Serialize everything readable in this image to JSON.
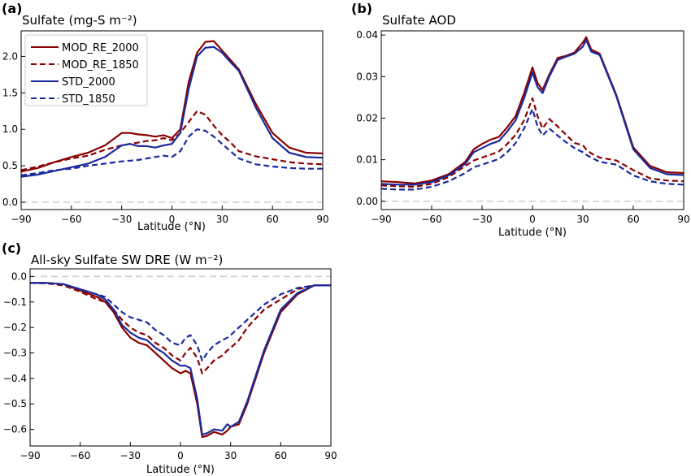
{
  "chart_data": [
    {
      "panel": "(a)",
      "type": "line",
      "title": "Sulfate (mg-S m⁻²)",
      "xlabel": "Latitude (°N)",
      "ylabel": "",
      "xlim": [
        -90,
        90
      ],
      "ylim": [
        -0.1,
        2.35
      ],
      "xticks": [
        -90,
        -60,
        -30,
        0,
        30,
        60,
        90
      ],
      "yticks": [
        0.0,
        0.5,
        1.0,
        1.5,
        2.0
      ],
      "ytick_labels": [
        "0.0",
        "0.5",
        "1.0",
        "1.5",
        "2.0"
      ],
      "zero_line": true,
      "legend": "top-left",
      "x": [
        -90,
        -80,
        -70,
        -60,
        -50,
        -40,
        -30,
        -25,
        -20,
        -15,
        -10,
        -5,
        0,
        5,
        10,
        15,
        20,
        25,
        30,
        35,
        40,
        50,
        60,
        70,
        80,
        90
      ],
      "series": [
        {
          "name": "MOD_RE_2000",
          "color": "#8b0000",
          "dash": false,
          "values": [
            0.42,
            0.47,
            0.55,
            0.62,
            0.68,
            0.78,
            0.95,
            0.95,
            0.93,
            0.92,
            0.9,
            0.92,
            0.88,
            1.0,
            1.65,
            2.05,
            2.2,
            2.21,
            2.08,
            1.95,
            1.82,
            1.35,
            0.95,
            0.75,
            0.68,
            0.67
          ]
        },
        {
          "name": "MOD_RE_1850",
          "color": "#8b0000",
          "dash": true,
          "values": [
            0.44,
            0.49,
            0.55,
            0.6,
            0.64,
            0.72,
            0.78,
            0.8,
            0.82,
            0.84,
            0.85,
            0.88,
            0.85,
            0.95,
            1.1,
            1.25,
            1.2,
            1.05,
            0.92,
            0.82,
            0.7,
            0.63,
            0.59,
            0.55,
            0.53,
            0.52
          ]
        },
        {
          "name": "STD_2000",
          "color": "#1a2a9c",
          "dash": false,
          "values": [
            0.35,
            0.38,
            0.43,
            0.48,
            0.53,
            0.62,
            0.78,
            0.8,
            0.77,
            0.77,
            0.75,
            0.78,
            0.8,
            0.95,
            1.55,
            2.0,
            2.12,
            2.13,
            2.05,
            1.92,
            1.8,
            1.3,
            0.88,
            0.68,
            0.62,
            0.61
          ]
        },
        {
          "name": "STD_1850",
          "color": "#1a2a9c",
          "dash": true,
          "values": [
            0.37,
            0.4,
            0.44,
            0.46,
            0.5,
            0.53,
            0.56,
            0.57,
            0.58,
            0.6,
            0.62,
            0.64,
            0.62,
            0.7,
            0.9,
            1.0,
            0.98,
            0.9,
            0.8,
            0.7,
            0.6,
            0.52,
            0.49,
            0.47,
            0.46,
            0.46
          ]
        }
      ]
    },
    {
      "panel": "(b)",
      "type": "line",
      "title": "Sulfate AOD",
      "xlabel": "Latitude (°N)",
      "ylabel": "",
      "xlim": [
        -90,
        90
      ],
      "ylim": [
        -0.002,
        0.041
      ],
      "xticks": [
        -90,
        -60,
        -30,
        0,
        30,
        60,
        90
      ],
      "yticks": [
        0.0,
        0.01,
        0.02,
        0.03,
        0.04
      ],
      "ytick_labels": [
        "0.00",
        "0.01",
        "0.02",
        "0.03",
        "0.04"
      ],
      "zero_line": true,
      "x": [
        -90,
        -80,
        -70,
        -60,
        -50,
        -40,
        -35,
        -30,
        -25,
        -20,
        -15,
        -10,
        -5,
        0,
        3,
        6,
        10,
        15,
        20,
        25,
        30,
        32,
        35,
        40,
        50,
        60,
        70,
        80,
        90
      ],
      "series": [
        {
          "name": "MOD_RE_2000",
          "color": "#8b0000",
          "dash": false,
          "values": [
            0.0048,
            0.0046,
            0.0043,
            0.005,
            0.0065,
            0.0095,
            0.0125,
            0.0138,
            0.0148,
            0.0155,
            0.0178,
            0.0205,
            0.026,
            0.0322,
            0.0285,
            0.0268,
            0.0305,
            0.0345,
            0.035,
            0.0358,
            0.0382,
            0.0395,
            0.0365,
            0.0355,
            0.0255,
            0.013,
            0.0085,
            0.007,
            0.0068
          ]
        },
        {
          "name": "MOD_RE_1850",
          "color": "#8b0000",
          "dash": true,
          "values": [
            0.0038,
            0.0036,
            0.0035,
            0.0042,
            0.0058,
            0.0085,
            0.0098,
            0.0105,
            0.0112,
            0.012,
            0.0138,
            0.016,
            0.0195,
            0.0248,
            0.0205,
            0.0175,
            0.0198,
            0.018,
            0.016,
            0.014,
            0.0135,
            0.0125,
            0.0115,
            0.0105,
            0.0098,
            0.0075,
            0.0055,
            0.005,
            0.0048
          ]
        },
        {
          "name": "STD_2000",
          "color": "#1a2a9c",
          "dash": false,
          "values": [
            0.0042,
            0.004,
            0.004,
            0.0046,
            0.0062,
            0.009,
            0.0118,
            0.0128,
            0.0138,
            0.0145,
            0.0168,
            0.0195,
            0.0248,
            0.031,
            0.0275,
            0.026,
            0.03,
            0.034,
            0.0348,
            0.0355,
            0.0372,
            0.0388,
            0.036,
            0.0352,
            0.0252,
            0.0125,
            0.008,
            0.0065,
            0.0063
          ]
        },
        {
          "name": "STD_1850",
          "color": "#1a2a9c",
          "dash": true,
          "values": [
            0.003,
            0.0028,
            0.0028,
            0.0035,
            0.0048,
            0.0068,
            0.0082,
            0.0088,
            0.0095,
            0.0102,
            0.0118,
            0.014,
            0.0175,
            0.0222,
            0.018,
            0.0158,
            0.0175,
            0.0158,
            0.0142,
            0.0128,
            0.0118,
            0.0112,
            0.0105,
            0.0095,
            0.0088,
            0.0062,
            0.0048,
            0.0042,
            0.004
          ]
        }
      ]
    },
    {
      "panel": "(c)",
      "type": "line",
      "title": "All-sky Sulfate SW DRE (W m⁻²)",
      "xlabel": "Latitude (°N)",
      "ylabel": "",
      "xlim": [
        -90,
        90
      ],
      "ylim": [
        -0.665,
        0.03
      ],
      "xticks": [
        -90,
        -60,
        -30,
        0,
        30,
        60,
        90
      ],
      "yticks": [
        0.0,
        -0.1,
        -0.2,
        -0.3,
        -0.4,
        -0.5,
        -0.6
      ],
      "ytick_labels": [
        "0.0",
        "−0.1",
        "−0.2",
        "−0.3",
        "−0.4",
        "−0.5",
        "−0.6"
      ],
      "zero_line": true,
      "x": [
        -90,
        -80,
        -70,
        -60,
        -50,
        -45,
        -40,
        -35,
        -30,
        -25,
        -20,
        -15,
        -10,
        -5,
        0,
        3,
        6,
        10,
        13,
        16,
        20,
        25,
        28,
        30,
        35,
        40,
        50,
        60,
        70,
        80,
        90
      ],
      "series": [
        {
          "name": "MOD_RE_2000",
          "color": "#8b0000",
          "dash": false,
          "values": [
            -0.025,
            -0.025,
            -0.03,
            -0.055,
            -0.08,
            -0.1,
            -0.14,
            -0.2,
            -0.24,
            -0.26,
            -0.27,
            -0.3,
            -0.33,
            -0.36,
            -0.38,
            -0.37,
            -0.38,
            -0.5,
            -0.63,
            -0.625,
            -0.61,
            -0.62,
            -0.605,
            -0.59,
            -0.58,
            -0.5,
            -0.3,
            -0.14,
            -0.07,
            -0.035,
            -0.035
          ]
        },
        {
          "name": "MOD_RE_1850",
          "color": "#8b0000",
          "dash": true,
          "values": [
            -0.025,
            -0.027,
            -0.035,
            -0.06,
            -0.09,
            -0.1,
            -0.13,
            -0.17,
            -0.2,
            -0.22,
            -0.23,
            -0.26,
            -0.28,
            -0.31,
            -0.33,
            -0.3,
            -0.28,
            -0.32,
            -0.38,
            -0.36,
            -0.33,
            -0.31,
            -0.29,
            -0.28,
            -0.25,
            -0.2,
            -0.13,
            -0.09,
            -0.05,
            -0.035,
            -0.035
          ]
        },
        {
          "name": "STD_2000",
          "color": "#1a2a9c",
          "dash": false,
          "values": [
            -0.025,
            -0.025,
            -0.03,
            -0.05,
            -0.07,
            -0.09,
            -0.13,
            -0.19,
            -0.22,
            -0.24,
            -0.25,
            -0.28,
            -0.3,
            -0.33,
            -0.35,
            -0.35,
            -0.36,
            -0.48,
            -0.62,
            -0.615,
            -0.6,
            -0.605,
            -0.58,
            -0.59,
            -0.57,
            -0.49,
            -0.29,
            -0.13,
            -0.065,
            -0.035,
            -0.035
          ]
        },
        {
          "name": "STD_1850",
          "color": "#1a2a9c",
          "dash": true,
          "values": [
            -0.025,
            -0.025,
            -0.03,
            -0.05,
            -0.07,
            -0.08,
            -0.11,
            -0.14,
            -0.16,
            -0.17,
            -0.18,
            -0.21,
            -0.23,
            -0.26,
            -0.27,
            -0.24,
            -0.23,
            -0.27,
            -0.33,
            -0.3,
            -0.27,
            -0.25,
            -0.24,
            -0.23,
            -0.2,
            -0.17,
            -0.11,
            -0.07,
            -0.045,
            -0.035,
            -0.035
          ]
        }
      ]
    }
  ]
}
